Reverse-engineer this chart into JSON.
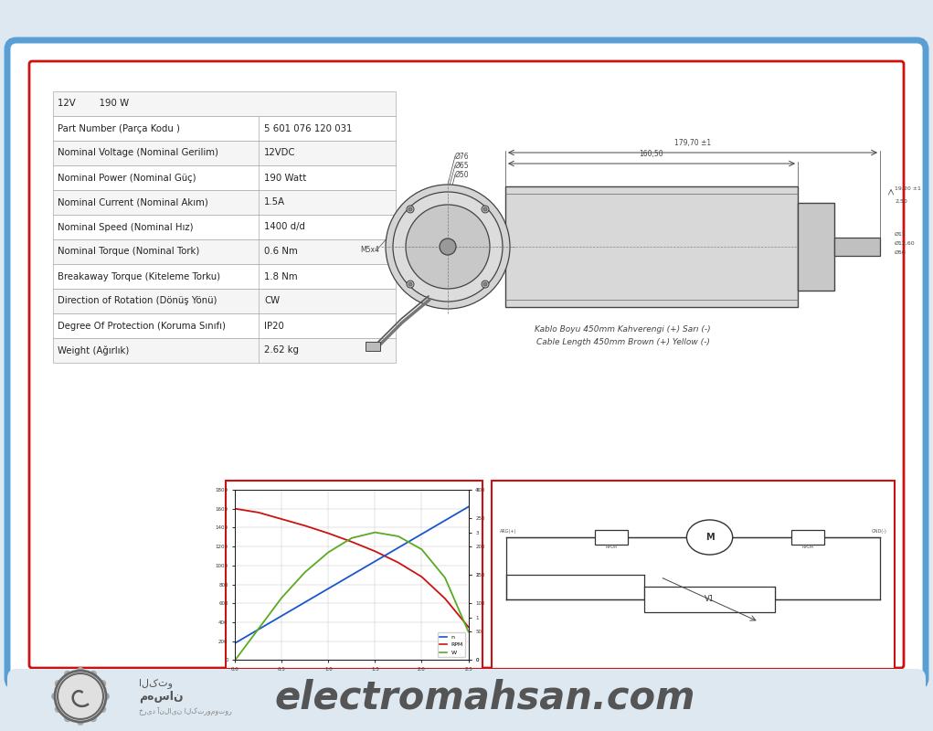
{
  "bg_color": "#dde8f0",
  "outer_border_color": "#5a9fd4",
  "red_border": "#cc1111",
  "white": "#ffffff",
  "table_data": [
    [
      "12V        190 W",
      ""
    ],
    [
      "Part Number (Parça Kodu )",
      "5 601 076 120 031"
    ],
    [
      "Nominal Voltage (Nominal Gerilim)",
      "12VDC"
    ],
    [
      "Nominal Power (Nominal Güç)",
      "190 Watt"
    ],
    [
      "Nominal Current (Nominal Akım)",
      "1.5A"
    ],
    [
      "Nominal Speed (Nominal Hız)",
      "1400 d/d"
    ],
    [
      "Nominal Torque (Nominal Tork)",
      "0.6 Nm"
    ],
    [
      "Breakaway Torque (Kiteleme Torku)",
      "1.8 Nm"
    ],
    [
      "Direction of Rotation (Dönüş Yönü)",
      "CW"
    ],
    [
      "Degree Of Protection (Koruma Sınıfı)",
      "IP20"
    ],
    [
      "Weight (Ağırlık)",
      "2.62 kg"
    ]
  ],
  "cable_text_line1": "Kablo Boyu 450mm Kahverengi (+) Sarı (-)",
  "cable_text_line2": "Cable Length 450mm Brown (+) Yellow (-)",
  "bottom_text": "electromahsan.com",
  "graph_torque": [
    0.0,
    0.25,
    0.5,
    0.75,
    1.0,
    1.25,
    1.5,
    1.75,
    2.0,
    2.25,
    2.5
  ],
  "graph_speed": [
    1600,
    1560,
    1490,
    1420,
    1340,
    1250,
    1150,
    1030,
    880,
    650,
    350
  ],
  "graph_current": [
    0.4,
    0.72,
    1.04,
    1.36,
    1.68,
    2.0,
    2.32,
    2.64,
    2.96,
    3.28,
    3.6
  ],
  "graph_power": [
    0,
    55,
    110,
    155,
    190,
    215,
    225,
    218,
    195,
    145,
    50
  ],
  "speed_color": "#1a56cc",
  "rpm_color": "#cc1111",
  "power_color": "#5aaa22",
  "text_color": "#222222",
  "dim_color": "#444444",
  "table_line_color": "#aaaaaa",
  "graph_grid_color": "#c8c8c8"
}
